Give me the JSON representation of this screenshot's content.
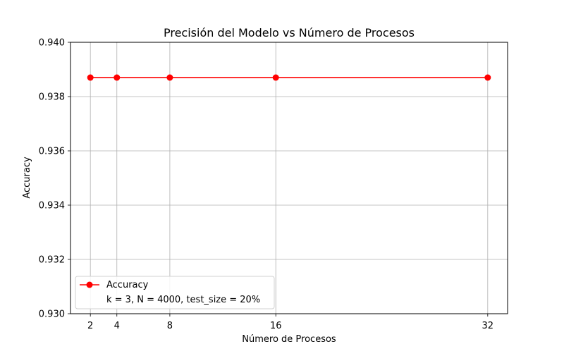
{
  "chart_data": {
    "type": "line",
    "title": "Precisión del Modelo vs Número de Procesos",
    "xlabel": "Número de Procesos",
    "ylabel": "Accuracy",
    "x": [
      2,
      4,
      8,
      16,
      32
    ],
    "x_ticks": [
      2,
      4,
      8,
      16,
      32
    ],
    "x_tick_labels": [
      "2",
      "4",
      "8",
      "16",
      "32"
    ],
    "y_ticks": [
      0.93,
      0.932,
      0.934,
      0.936,
      0.938,
      0.94
    ],
    "y_tick_labels": [
      "0.930",
      "0.932",
      "0.934",
      "0.936",
      "0.938",
      "0.940"
    ],
    "xlim": [
      0.5,
      33.5
    ],
    "ylim": [
      0.93,
      0.94
    ],
    "grid": true,
    "series": [
      {
        "name": "Accuracy",
        "values": [
          0.9387,
          0.9387,
          0.9387,
          0.9387,
          0.9387
        ],
        "color": "#ff0000",
        "marker": "circle"
      }
    ],
    "legend": {
      "position": "lower-left",
      "entries": [
        "Accuracy",
        "k = 3, N = 4000, test_size = 20%"
      ]
    }
  }
}
